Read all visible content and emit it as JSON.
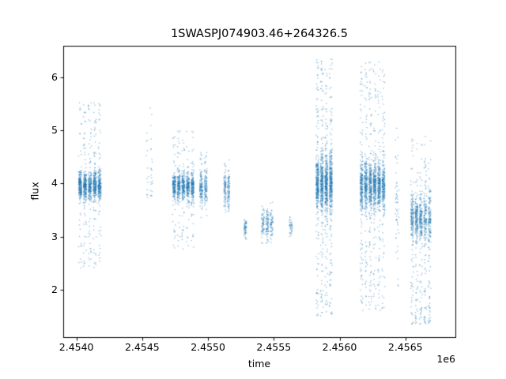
{
  "chart_data": {
    "type": "scatter",
    "title": "1SWASPJ074903.46+264326.5",
    "xlabel": "time",
    "ylabel": "flux",
    "x_offset_label": "1e6",
    "xlim": [
      2453900,
      2456880
    ],
    "ylim": [
      1.1,
      6.6
    ],
    "x_tick_values": [
      2454000,
      2454500,
      2455000,
      2455500,
      2456000,
      2456500
    ],
    "x_tick_labels": [
      "2.4540",
      "2.4545",
      "2.4550",
      "2.4555",
      "2.4560",
      "2.4565"
    ],
    "y_tick_values": [
      2,
      3,
      4,
      5,
      6
    ],
    "y_tick_labels": [
      "2",
      "3",
      "4",
      "5",
      "6"
    ],
    "marker_color": "31,119,180",
    "marker_alpha": 0.5,
    "grid": false,
    "legend": false,
    "clusters": [
      {
        "t_start": 2454010,
        "t_end": 2454195,
        "nights": 5,
        "n": 1200,
        "flux_mean": 3.95,
        "flux_sigma": 0.13,
        "core_frac": 0.84,
        "flux_min": 2.4,
        "flux_max": 5.55,
        "skew": 1.0
      },
      {
        "t_start": 2454525,
        "t_end": 2454585,
        "nights": 2,
        "n": 35,
        "flux_mean": 4.2,
        "flux_sigma": 0.35,
        "core_frac": 0.6,
        "flux_min": 3.7,
        "flux_max": 5.55,
        "skew": 0.8
      },
      {
        "t_start": 2454725,
        "t_end": 2454900,
        "nights": 5,
        "n": 950,
        "flux_mean": 3.95,
        "flux_sigma": 0.13,
        "core_frac": 0.85,
        "flux_min": 2.75,
        "flux_max": 5.0,
        "skew": 1.0
      },
      {
        "t_start": 2454930,
        "t_end": 2455000,
        "nights": 2,
        "n": 260,
        "flux_mean": 3.9,
        "flux_sigma": 0.16,
        "core_frac": 0.88,
        "flux_min": 3.3,
        "flux_max": 4.6,
        "skew": 1.0
      },
      {
        "t_start": 2455115,
        "t_end": 2455170,
        "nights": 2,
        "n": 190,
        "flux_mean": 3.9,
        "flux_sigma": 0.18,
        "core_frac": 0.9,
        "flux_min": 3.35,
        "flux_max": 4.45,
        "skew": 1.0
      },
      {
        "t_start": 2455268,
        "t_end": 2455298,
        "nights": 1,
        "n": 60,
        "flux_mean": 3.15,
        "flux_sigma": 0.09,
        "core_frac": 0.95,
        "flux_min": 2.95,
        "flux_max": 3.4,
        "skew": 1.0
      },
      {
        "t_start": 2455400,
        "t_end": 2455500,
        "nights": 3,
        "n": 210,
        "flux_mean": 3.25,
        "flux_sigma": 0.14,
        "core_frac": 0.9,
        "flux_min": 2.85,
        "flux_max": 3.65,
        "skew": 1.0
      },
      {
        "t_start": 2455612,
        "t_end": 2455648,
        "nights": 1,
        "n": 40,
        "flux_mean": 3.2,
        "flux_sigma": 0.08,
        "core_frac": 0.95,
        "flux_min": 3.0,
        "flux_max": 3.45,
        "skew": 1.0
      },
      {
        "t_start": 2455815,
        "t_end": 2455950,
        "nights": 4,
        "n": 1500,
        "flux_mean": 4.0,
        "flux_sigma": 0.26,
        "core_frac": 0.74,
        "flux_min": 1.5,
        "flux_max": 6.35,
        "skew": 1.0
      },
      {
        "t_start": 2456150,
        "t_end": 2456350,
        "nights": 6,
        "n": 1700,
        "flux_mean": 3.95,
        "flux_sigma": 0.22,
        "core_frac": 0.77,
        "flux_min": 1.6,
        "flux_max": 6.3,
        "skew": 1.0
      },
      {
        "t_start": 2456415,
        "t_end": 2456460,
        "nights": 1,
        "n": 55,
        "flux_mean": 3.5,
        "flux_sigma": 0.55,
        "core_frac": 0.75,
        "flux_min": 2.0,
        "flux_max": 5.05,
        "skew": 1.0
      },
      {
        "t_start": 2456535,
        "t_end": 2456700,
        "nights": 5,
        "n": 950,
        "flux_mean": 3.35,
        "flux_sigma": 0.2,
        "core_frac": 0.72,
        "flux_min": 1.35,
        "flux_max": 4.9,
        "skew": 1.45
      }
    ]
  }
}
